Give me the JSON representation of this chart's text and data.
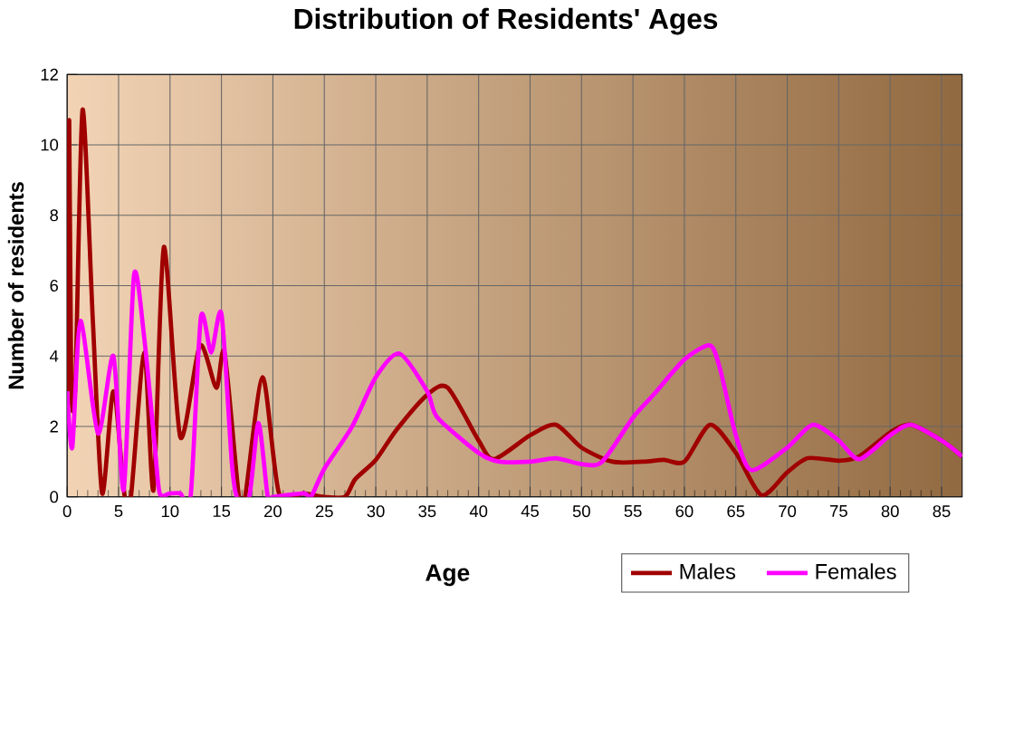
{
  "chart_data": {
    "type": "line",
    "title": "Distribution of Residents' Ages",
    "xlabel": "Age",
    "ylabel": "Number of residents",
    "xlim": [
      0,
      87
    ],
    "ylim": [
      0,
      12
    ],
    "xticks": [
      0,
      5,
      10,
      15,
      20,
      25,
      30,
      35,
      40,
      45,
      50,
      55,
      60,
      65,
      70,
      75,
      80,
      85
    ],
    "yticks": [
      0,
      2,
      4,
      6,
      8,
      10,
      12
    ],
    "grid": true,
    "legend": "bottom right",
    "marker": "none",
    "line_style": "solid",
    "series": [
      {
        "name": "Males",
        "color": "#a00000",
        "x": [
          0,
          0.2,
          0.4,
          0.8,
          1.5,
          2.5,
          3.4,
          4.5,
          5.6,
          6.2,
          7.5,
          8.4,
          9.4,
          11,
          12.9,
          14.5,
          15.3,
          16.7,
          17.3,
          19,
          20.6,
          23,
          25,
          27,
          28,
          30,
          32,
          35,
          37,
          40,
          41.5,
          45,
          47.5,
          50,
          53,
          56,
          58,
          60,
          62.5,
          65,
          67.5,
          70,
          72,
          75,
          77,
          80,
          82,
          85,
          87
        ],
        "values": [
          3,
          10.7,
          3.1,
          3.2,
          11,
          5,
          0.1,
          3,
          0,
          0,
          4.1,
          0.2,
          7.1,
          1.7,
          4.3,
          3.1,
          4.1,
          0,
          0,
          3.4,
          0.1,
          0.1,
          0,
          0,
          0.5,
          1.05,
          1.9,
          2.9,
          3.1,
          1.6,
          1.07,
          1.75,
          2.05,
          1.4,
          1,
          1,
          1.05,
          1,
          2.05,
          1.25,
          0.05,
          0.7,
          1.1,
          1.03,
          1.15,
          1.83,
          2.05,
          1.6,
          1.15
        ]
      },
      {
        "name": "Females",
        "color": "#ff00ff",
        "x": [
          0,
          0.5,
          1.3,
          3,
          4.5,
          5.5,
          6.5,
          7.5,
          8.5,
          9,
          10,
          11,
          12,
          13,
          14,
          15,
          16,
          16.5,
          17.7,
          18.6,
          19.5,
          20,
          23,
          23.7,
          25,
          27.7,
          30,
          32.3,
          35,
          36,
          40,
          42,
          45,
          47.5,
          50,
          52,
          55,
          57,
          60,
          62.5,
          63.5,
          65,
          66.5,
          70,
          72.5,
          75,
          77,
          80,
          82,
          85,
          87
        ],
        "values": [
          3,
          1.4,
          5,
          1.8,
          4,
          0.2,
          6.3,
          4.5,
          1.5,
          0.1,
          0.1,
          0.1,
          0,
          5.1,
          4.1,
          5.2,
          1,
          0,
          0,
          2.1,
          0,
          0,
          0.1,
          0,
          0.8,
          2,
          3.4,
          4.07,
          3,
          2.25,
          1.25,
          1,
          1,
          1.1,
          0.93,
          1,
          2.25,
          2.9,
          3.9,
          4.3,
          3.6,
          1.75,
          0.76,
          1.4,
          2.05,
          1.6,
          1.07,
          1.75,
          2.05,
          1.6,
          1.15
        ]
      }
    ]
  }
}
